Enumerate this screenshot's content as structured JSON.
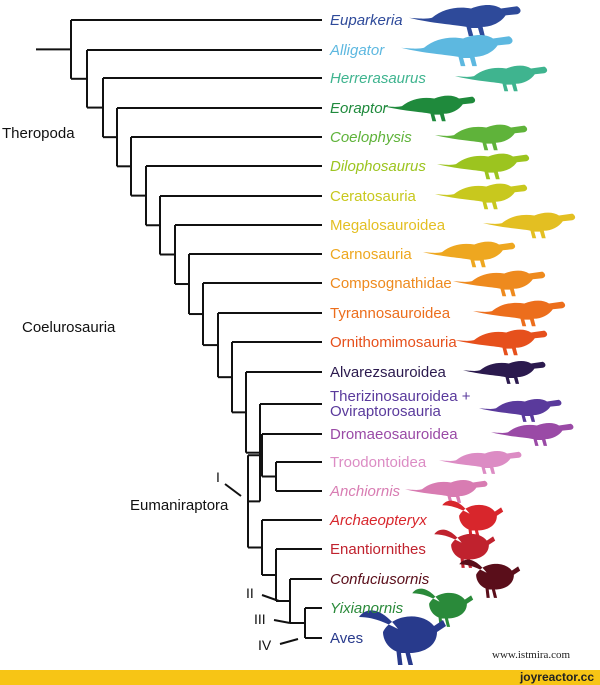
{
  "taxa": [
    {
      "label": "Euparkeria",
      "italic": true,
      "color": "#2e4a9a"
    },
    {
      "label": "Alligator",
      "italic": true,
      "color": "#5db8e0"
    },
    {
      "label": "Herrerasaurus",
      "italic": true,
      "color": "#3fb48f"
    },
    {
      "label": "Eoraptor",
      "italic": true,
      "color": "#1f8a3c"
    },
    {
      "label": "Coelophysis",
      "italic": true,
      "color": "#5fb33a"
    },
    {
      "label": "Dilophosaurus",
      "italic": true,
      "color": "#9cc41f"
    },
    {
      "label": "Ceratosauria",
      "italic": false,
      "color": "#c8c81e"
    },
    {
      "label": "Megalosauroidea",
      "italic": false,
      "color": "#e3bf22"
    },
    {
      "label": "Carnosauria",
      "italic": false,
      "color": "#eea720"
    },
    {
      "label": "Compsognathidae",
      "italic": false,
      "color": "#ee8a1e"
    },
    {
      "label": "Tyrannosauroidea",
      "italic": false,
      "color": "#ec6e1c"
    },
    {
      "label": "Ornithomimosauria",
      "italic": false,
      "color": "#e6501c"
    },
    {
      "label": "Alvarezsauroidea",
      "italic": false,
      "color": "#2b1a4e"
    },
    {
      "label": "Therizinosauroidea +",
      "label2": "Oviraptorosauria",
      "italic": false,
      "color": "#5a3a9c"
    },
    {
      "label": "Dromaeosauroidea",
      "italic": false,
      "color": "#9a4aa6"
    },
    {
      "label": "Troodontoidea",
      "italic": false,
      "color": "#dc8cc4"
    },
    {
      "label": "Anchiornis",
      "italic": true,
      "color": "#d87cb2"
    },
    {
      "label": "Archaeopteryx",
      "italic": true,
      "color": "#d8262c"
    },
    {
      "label": "Enantiornithes",
      "italic": false,
      "color": "#c0222e"
    },
    {
      "label": "Confuciusornis",
      "italic": true,
      "color": "#5a0e1a"
    },
    {
      "label": "Yixianornis",
      "italic": true,
      "color": "#2a8a3a"
    },
    {
      "label": "Aves",
      "italic": false,
      "color": "#283a8c"
    }
  ],
  "clades": {
    "theropoda": "Theropoda",
    "coelurosauria": "Coelurosauria",
    "eumaniraptora": "Eumaniraptora"
  },
  "node_labels": [
    "I",
    "II",
    "III",
    "IV"
  ],
  "watermark": "www.istmira.com",
  "footer": "joyreactor.cc"
}
